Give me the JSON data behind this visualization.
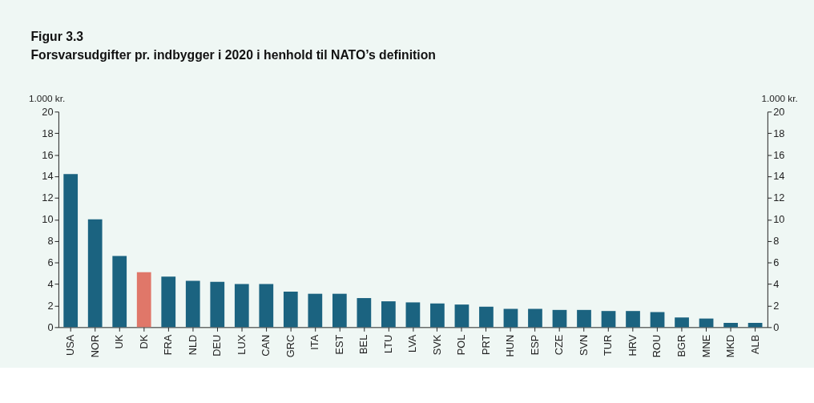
{
  "chart_data": {
    "type": "bar",
    "title": "Figur 3.3",
    "subtitle": "Forsvarsudgifter pr. indbygger i 2020 i henhold til NATO’s definition",
    "ylabel": "1.000 kr.",
    "y2label": "1.000 kr.",
    "categories": [
      "USA",
      "NOR",
      "UK",
      "DK",
      "FRA",
      "NLD",
      "DEU",
      "LUX",
      "CAN",
      "GRC",
      "ITA",
      "EST",
      "BEL",
      "LTU",
      "LVA",
      "SVK",
      "POL",
      "PRT",
      "HUN",
      "ESP",
      "CZE",
      "SVN",
      "TUR",
      "HRV",
      "ROU",
      "BGR",
      "MNE",
      "MKD",
      "ALB"
    ],
    "values": [
      14.2,
      10.0,
      6.6,
      5.1,
      4.7,
      4.3,
      4.2,
      4.0,
      4.0,
      3.3,
      3.1,
      3.1,
      2.7,
      2.4,
      2.3,
      2.2,
      2.1,
      1.9,
      1.7,
      1.7,
      1.6,
      1.6,
      1.5,
      1.5,
      1.4,
      0.9,
      0.8,
      0.4,
      0.4
    ],
    "colors": [
      "#1b6380",
      "#1b6380",
      "#1b6380",
      "#e07769",
      "#1b6380",
      "#1b6380",
      "#1b6380",
      "#1b6380",
      "#1b6380",
      "#1b6380",
      "#1b6380",
      "#1b6380",
      "#1b6380",
      "#1b6380",
      "#1b6380",
      "#1b6380",
      "#1b6380",
      "#1b6380",
      "#1b6380",
      "#1b6380",
      "#1b6380",
      "#1b6380",
      "#1b6380",
      "#1b6380",
      "#1b6380",
      "#1b6380",
      "#1b6380",
      "#1b6380",
      "#1b6380"
    ],
    "ylim": [
      0,
      20
    ],
    "yticks": [
      0,
      2,
      4,
      6,
      8,
      10,
      12,
      14,
      16,
      18,
      20
    ],
    "y2lim": [
      0,
      20
    ],
    "y2ticks": [
      0,
      2,
      4,
      6,
      8,
      10,
      12,
      14,
      16,
      18,
      20
    ],
    "grid": false
  }
}
